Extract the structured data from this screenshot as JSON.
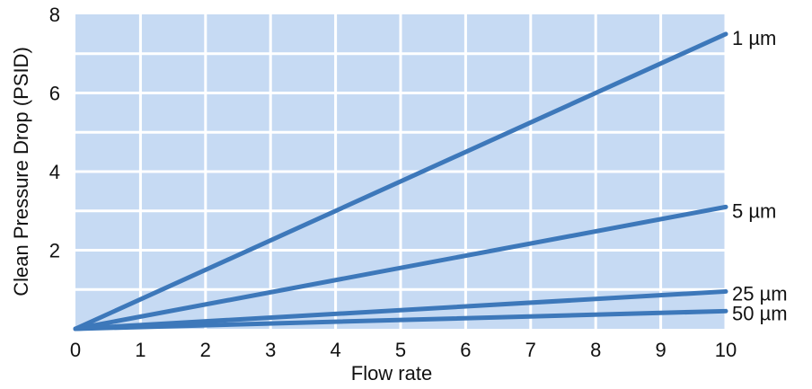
{
  "chart_data": {
    "type": "line",
    "title": "",
    "xlabel": "Flow rate",
    "ylabel": "Clean Pressure Drop (PSID)",
    "xlim": [
      0,
      10
    ],
    "ylim": [
      0,
      8
    ],
    "x_ticks": [
      "0",
      "1",
      "2",
      "3",
      "4",
      "5",
      "6",
      "7",
      "8",
      "9",
      "10"
    ],
    "y_ticks": [
      "2",
      "4",
      "6",
      "8"
    ],
    "grid": true,
    "colors": {
      "plot_background": "#c6daf3",
      "grid": "#ffffff",
      "line": "#3d78ba"
    },
    "series": [
      {
        "name": "1 µm",
        "x": [
          0,
          10
        ],
        "y": [
          0.0,
          7.5
        ]
      },
      {
        "name": "5 µm",
        "x": [
          0,
          10
        ],
        "y": [
          0.0,
          3.1
        ]
      },
      {
        "name": "25 µm",
        "x": [
          0,
          10
        ],
        "y": [
          0.0,
          0.95
        ]
      },
      {
        "name": "50 µm",
        "x": [
          0,
          10
        ],
        "y": [
          0.0,
          0.45
        ]
      }
    ]
  }
}
